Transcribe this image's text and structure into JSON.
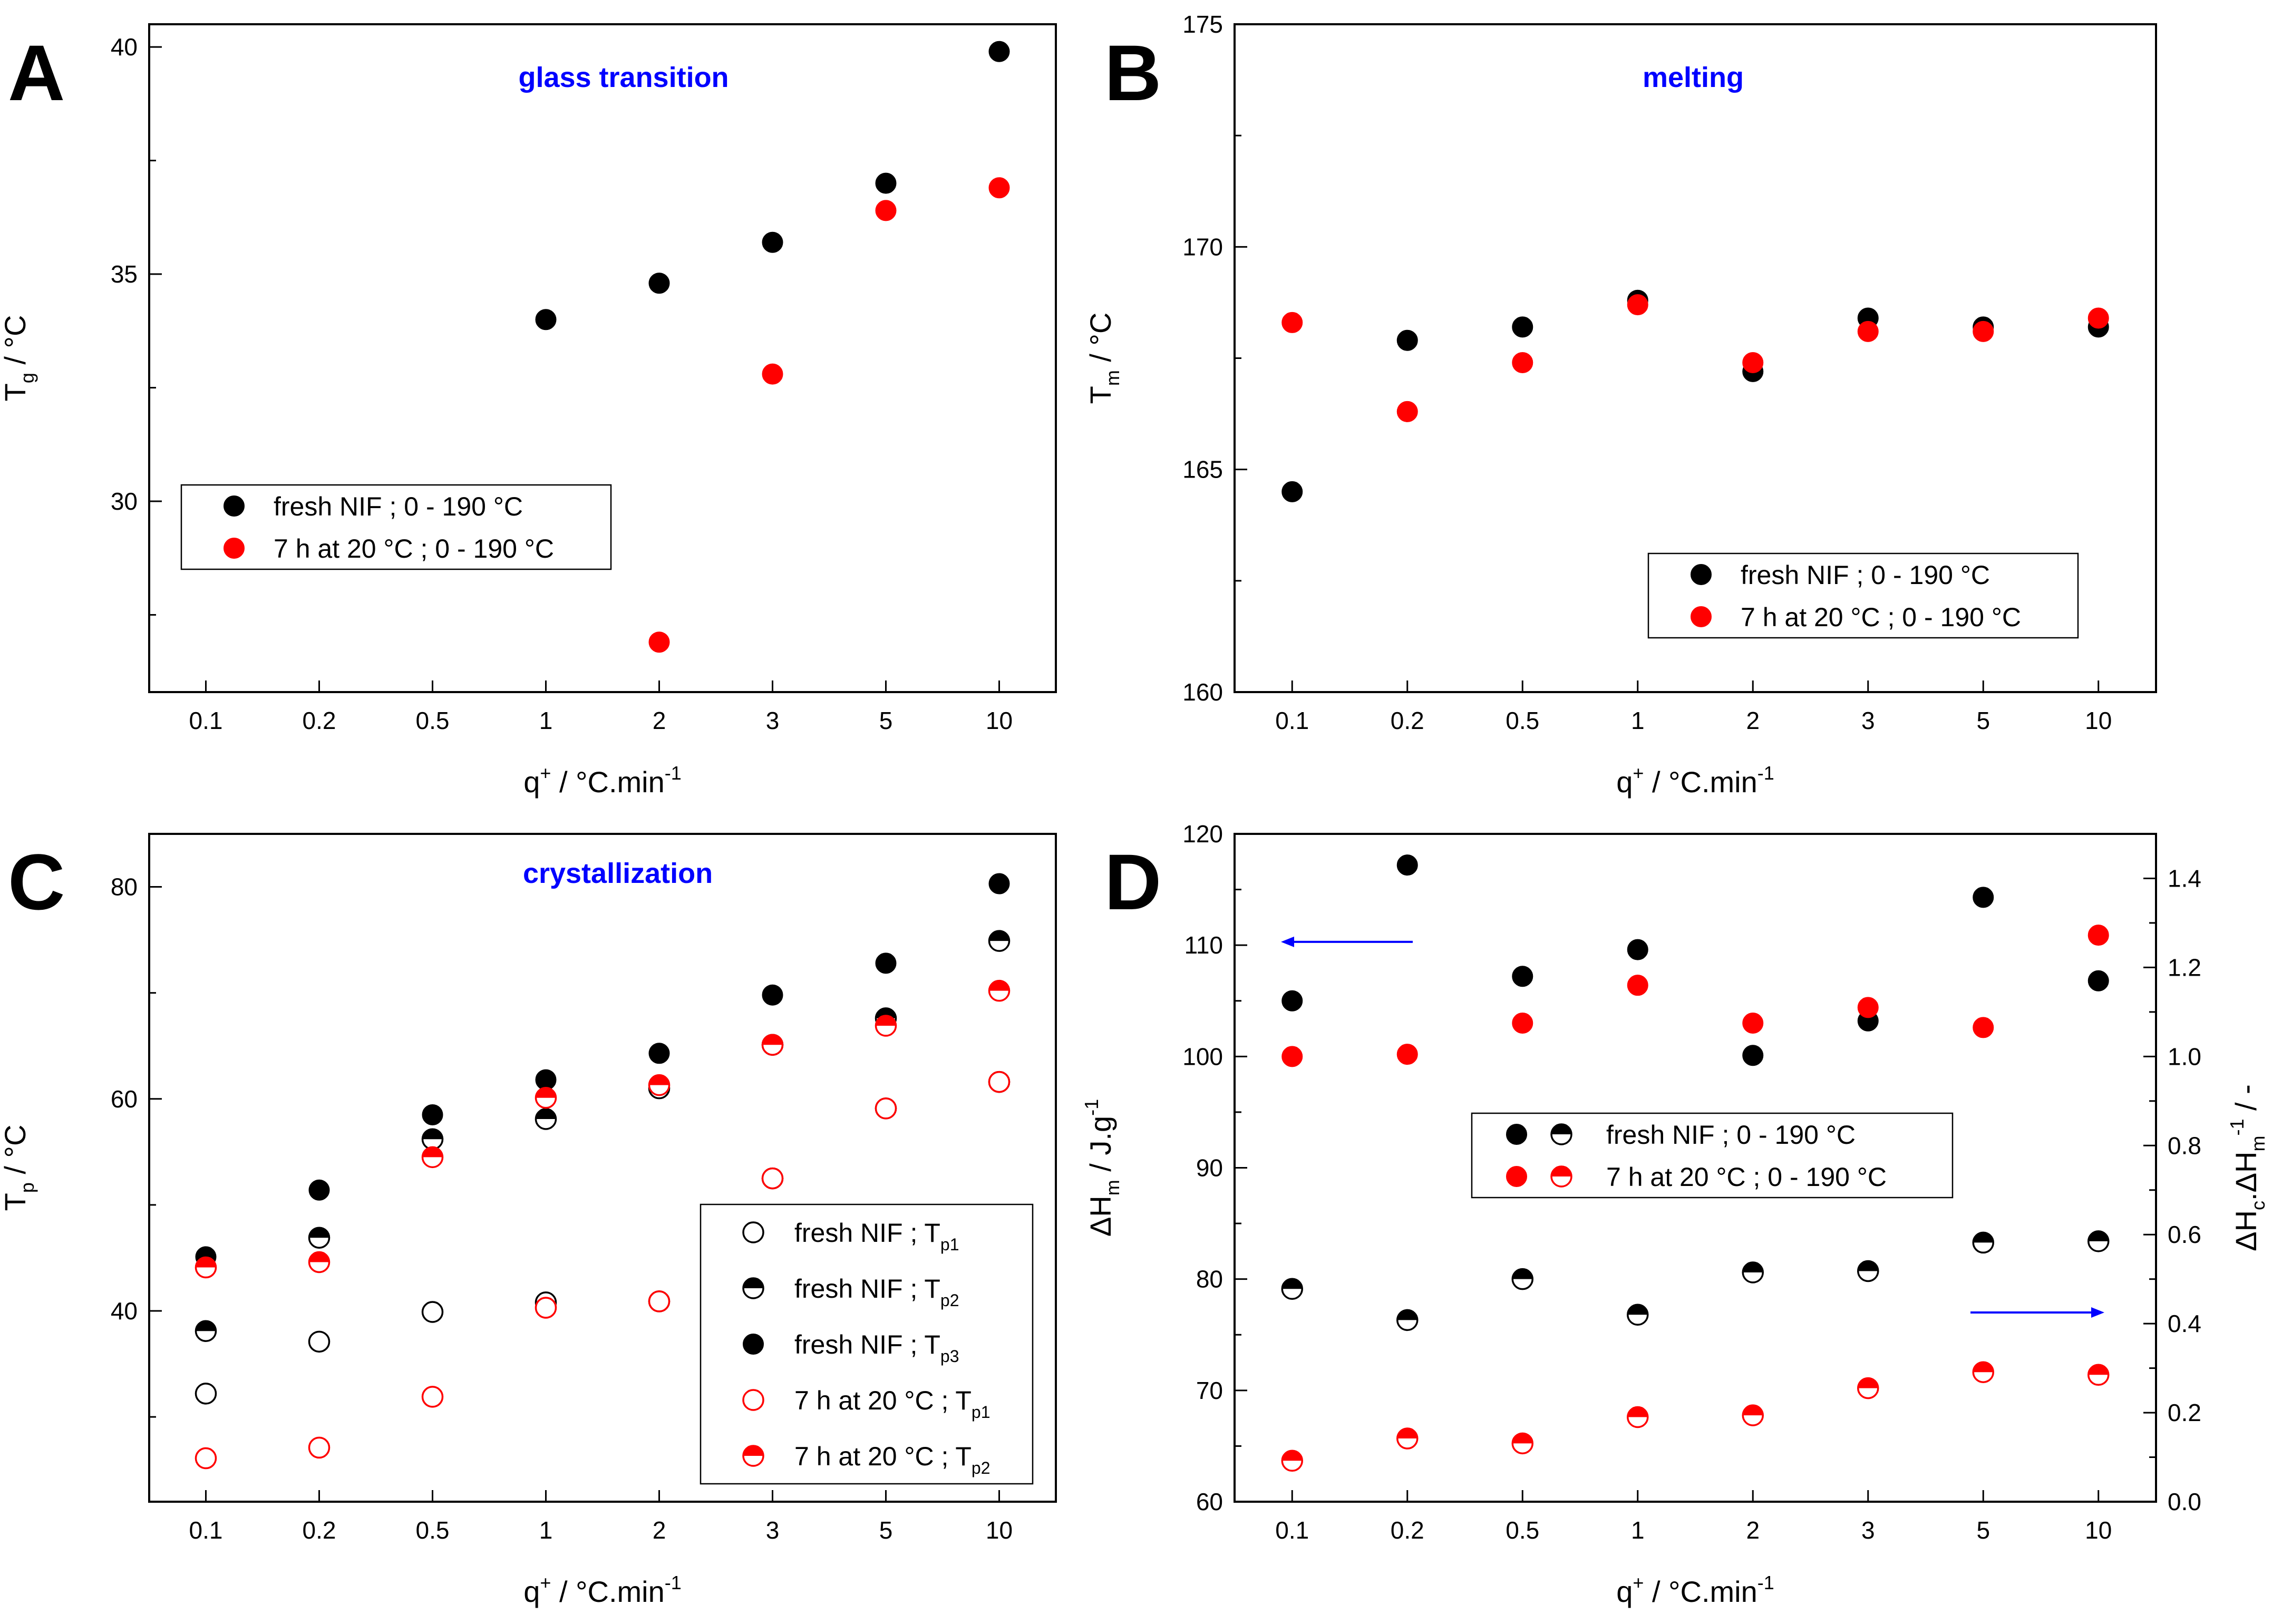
{
  "colors": {
    "black": "#000000",
    "red": "#ff0000",
    "blue": "#0000ff",
    "white": "#ffffff"
  },
  "chart_data": [
    {
      "type": "scatter",
      "panel": "A",
      "annotation": "glass transition",
      "ylabel": "T",
      "ylabel_sub": "g",
      "ylabel_unit": "°C",
      "xlabel": "q",
      "xlabel_sup": "+",
      "xlabel_unit": "°C.min",
      "xlabel_unit_sup": "-1",
      "categories": [
        "0.1",
        "0.2",
        "0.5",
        "1",
        "2",
        "3",
        "5",
        "10"
      ],
      "ylim": [
        25.8,
        40.5
      ],
      "yticks": [
        30,
        35,
        40
      ],
      "series": [
        {
          "name": "fresh NIF ; 0 - 190 °C",
          "marker": "filled",
          "color": "#000000",
          "values": [
            null,
            null,
            null,
            34.0,
            34.8,
            35.7,
            37.0,
            39.9
          ]
        },
        {
          "name": "7 h at 20 °C ; 0 - 190 °C",
          "marker": "filled",
          "color": "#ff0000",
          "values": [
            null,
            null,
            null,
            null,
            26.9,
            32.8,
            36.4,
            36.9
          ]
        }
      ],
      "legend": [
        {
          "label": "fresh NIF ; 0 - 190 °C"
        },
        {
          "label": "7 h at 20 °C ; 0 - 190 °C"
        }
      ]
    },
    {
      "type": "scatter",
      "panel": "B",
      "annotation": "melting",
      "ylabel": "T",
      "ylabel_sub": "m",
      "ylabel_unit": "°C",
      "xlabel": "q",
      "xlabel_sup": "+",
      "xlabel_unit": "°C.min",
      "xlabel_unit_sup": "-1",
      "categories": [
        "0.1",
        "0.2",
        "0.5",
        "1",
        "2",
        "3",
        "5",
        "10"
      ],
      "ylim": [
        160,
        175
      ],
      "yticks": [
        160,
        165,
        170,
        175
      ],
      "series": [
        {
          "name": "fresh NIF ; 0 - 190 °C",
          "marker": "filled",
          "color": "#000000",
          "values": [
            164.5,
            167.9,
            168.2,
            168.8,
            167.2,
            168.4,
            168.2,
            168.2
          ]
        },
        {
          "name": "7 h at 20 °C ; 0 - 190 °C",
          "marker": "filled",
          "color": "#ff0000",
          "values": [
            168.3,
            166.3,
            167.4,
            168.7,
            167.4,
            168.1,
            168.1,
            168.4
          ]
        }
      ],
      "legend": [
        {
          "label": "fresh NIF ; 0 - 190 °C"
        },
        {
          "label": "7 h at 20 °C ; 0 - 190 °C"
        }
      ]
    },
    {
      "type": "scatter",
      "panel": "C",
      "annotation": "crystallization",
      "ylabel": "T",
      "ylabel_sub": "p",
      "ylabel_unit": "°C",
      "xlabel": "q",
      "xlabel_sup": "+",
      "xlabel_unit": "°C.min",
      "xlabel_unit_sup": "-1",
      "categories": [
        "0.1",
        "0.2",
        "0.5",
        "1",
        "2",
        "3",
        "5",
        "10"
      ],
      "ylim": [
        22,
        85
      ],
      "yticks": [
        40,
        60,
        80
      ],
      "series": [
        {
          "name": "fresh NIF ; Tp1",
          "marker": "open",
          "color": "#000000",
          "values": [
            32.2,
            37.1,
            39.9,
            40.8,
            40.9,
            52.5,
            59.1,
            61.6
          ]
        },
        {
          "name": "fresh NIF ; Tp2",
          "marker": "half",
          "color": "#000000",
          "values": [
            38.1,
            46.9,
            56.2,
            58.1,
            61.0,
            65.1,
            67.6,
            74.9
          ]
        },
        {
          "name": "fresh NIF ; Tp3",
          "marker": "filled",
          "color": "#000000",
          "values": [
            45.1,
            51.4,
            58.5,
            61.8,
            64.3,
            69.8,
            72.8,
            80.3
          ]
        },
        {
          "name": "7 h at 20 °C ; Tp1",
          "marker": "open",
          "color": "#ff0000",
          "values": [
            26.1,
            27.1,
            31.9,
            40.3,
            40.9,
            52.5,
            59.1,
            61.6
          ]
        },
        {
          "name": "7 h at 20 °C ; Tp2",
          "marker": "half",
          "color": "#ff0000",
          "values": [
            44.1,
            44.6,
            54.5,
            60.1,
            61.3,
            65.1,
            66.9,
            70.2
          ]
        }
      ],
      "legend": [
        {
          "label": "fresh NIF ; T",
          "sub": "p1"
        },
        {
          "label": "fresh NIF ; T",
          "sub": "p2"
        },
        {
          "label": "fresh NIF ; T",
          "sub": "p3"
        },
        {
          "label": "7 h at 20 °C ; T",
          "sub": "p1"
        },
        {
          "label": "7 h at 20 °C ; T",
          "sub": "p2"
        }
      ]
    },
    {
      "type": "scatter",
      "panel": "D",
      "ylabel": "ΔH",
      "ylabel_sub": "m",
      "ylabel_unit": "J.g",
      "ylabel_unit_sup": "-1",
      "y2label": "ΔH",
      "y2label_sub1": "c",
      "y2label_mid": ".ΔH",
      "y2label_sub2": "m",
      "y2label_sup2": "-1",
      "y2label_unit": "-",
      "xlabel": "q",
      "xlabel_sup": "+",
      "xlabel_unit": "°C.min",
      "xlabel_unit_sup": "-1",
      "categories": [
        "0.1",
        "0.2",
        "0.5",
        "1",
        "2",
        "3",
        "5",
        "10"
      ],
      "ylim": [
        60,
        120
      ],
      "yticks": [
        60,
        70,
        80,
        90,
        100,
        110,
        120
      ],
      "y2lim": [
        0,
        1.5
      ],
      "y2ticks": [
        "0.0",
        "0.2",
        "0.4",
        "0.6",
        "0.8",
        "1.0",
        "1.2",
        "1.4"
      ],
      "series": [
        {
          "name": "fresh NIF ; 0 - 190 °C (ΔHm)",
          "axis": "left",
          "marker": "filled",
          "color": "#000000",
          "values": [
            105.0,
            117.2,
            107.2,
            109.6,
            100.1,
            103.2,
            114.3,
            106.8
          ]
        },
        {
          "name": "7 h at 20 °C ; 0 - 190 °C (ΔHm)",
          "axis": "left",
          "marker": "filled",
          "color": "#ff0000",
          "values": [
            100.0,
            100.2,
            103.0,
            106.4,
            103.0,
            104.4,
            102.6,
            110.9
          ]
        },
        {
          "name": "fresh NIF ; 0 - 190 °C (ΔHc/ΔHm)",
          "axis": "right",
          "marker": "half",
          "color": "#000000",
          "values": [
            0.478,
            0.408,
            0.5,
            0.42,
            0.515,
            0.518,
            0.582,
            0.585
          ]
        },
        {
          "name": "7 h at 20 °C ; 0 - 190 °C (ΔHc/ΔHm)",
          "axis": "right",
          "marker": "half",
          "color": "#ff0000",
          "values": [
            0.092,
            0.142,
            0.131,
            0.19,
            0.194,
            0.255,
            0.291,
            0.285
          ]
        }
      ],
      "legend": [
        {
          "label": "fresh NIF ; 0 - 190 °C"
        },
        {
          "label": "7 h at 20 °C ; 0 - 190 °C"
        }
      ]
    }
  ]
}
